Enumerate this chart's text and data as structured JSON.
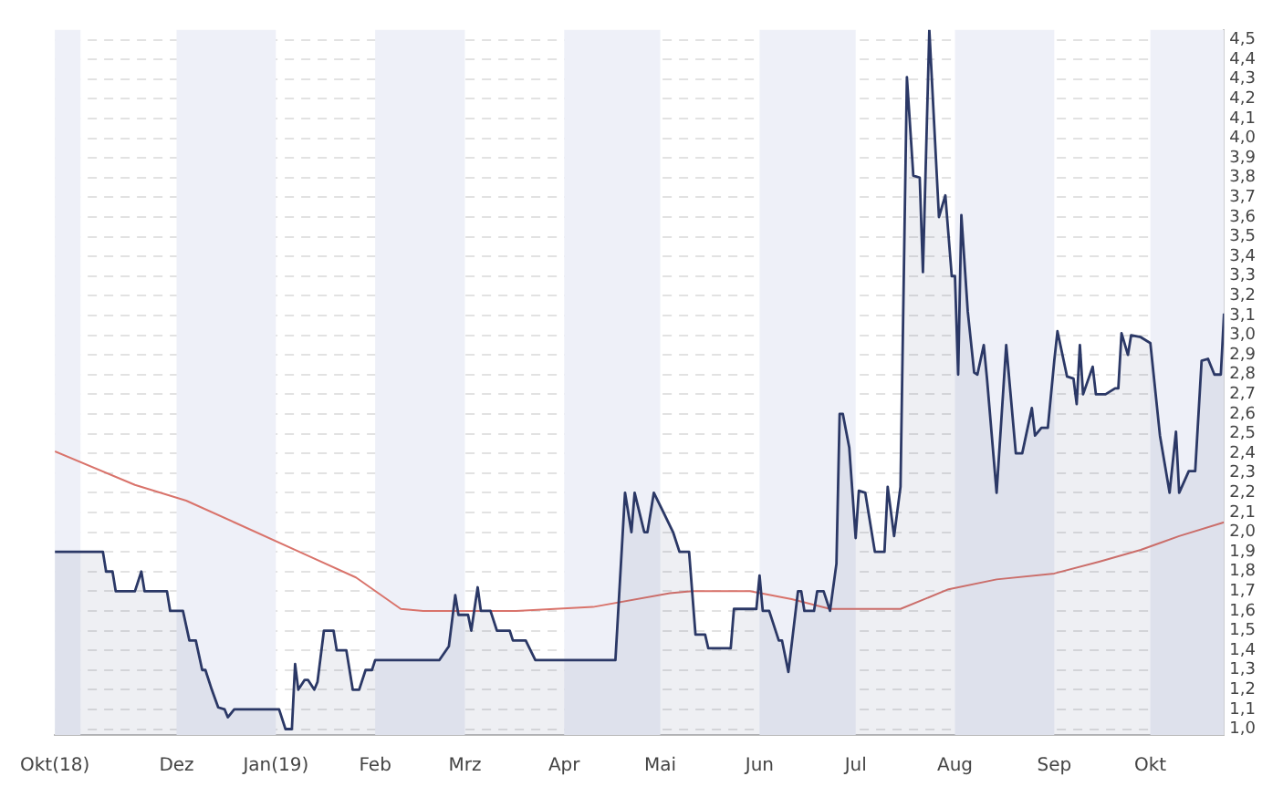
{
  "chart_data": {
    "type": "area",
    "grid": "y",
    "xlim": [
      "2018-10-24",
      "2019-10-24"
    ],
    "ylim": [
      0.97,
      4.55
    ],
    "xticks": [
      {
        "value": "2018-10-24",
        "label": "Okt(18)"
      },
      {
        "value": "2018-12-01",
        "label": "Dez"
      },
      {
        "value": "2019-01-01",
        "label": "Jan(19)"
      },
      {
        "value": "2019-02-01",
        "label": "Feb"
      },
      {
        "value": "2019-03-01",
        "label": "Mrz"
      },
      {
        "value": "2019-04-01",
        "label": "Apr"
      },
      {
        "value": "2019-05-01",
        "label": "Mai"
      },
      {
        "value": "2019-06-01",
        "label": "Jun"
      },
      {
        "value": "2019-07-01",
        "label": "Jul"
      },
      {
        "value": "2019-08-01",
        "label": "Aug"
      },
      {
        "value": "2019-09-01",
        "label": "Sep"
      },
      {
        "value": "2019-10-01",
        "label": "Okt"
      }
    ],
    "yticks": [
      {
        "value": 1.0,
        "label": "1,0"
      },
      {
        "value": 1.1,
        "label": "1,1"
      },
      {
        "value": 1.2,
        "label": "1,2"
      },
      {
        "value": 1.3,
        "label": "1,3"
      },
      {
        "value": 1.4,
        "label": "1,4"
      },
      {
        "value": 1.5,
        "label": "1,5"
      },
      {
        "value": 1.6,
        "label": "1,6"
      },
      {
        "value": 1.7,
        "label": "1,7"
      },
      {
        "value": 1.8,
        "label": "1,8"
      },
      {
        "value": 1.9,
        "label": "1,9"
      },
      {
        "value": 2.0,
        "label": "2,0"
      },
      {
        "value": 2.1,
        "label": "2,1"
      },
      {
        "value": 2.2,
        "label": "2,2"
      },
      {
        "value": 2.3,
        "label": "2,3"
      },
      {
        "value": 2.4,
        "label": "2,4"
      },
      {
        "value": 2.5,
        "label": "2,5"
      },
      {
        "value": 2.6,
        "label": "2,6"
      },
      {
        "value": 2.7,
        "label": "2,7"
      },
      {
        "value": 2.8,
        "label": "2,8"
      },
      {
        "value": 2.9,
        "label": "2,9"
      },
      {
        "value": 3.0,
        "label": "3,0"
      },
      {
        "value": 3.1,
        "label": "3,1"
      },
      {
        "value": 3.2,
        "label": "3,2"
      },
      {
        "value": 3.3,
        "label": "3,3"
      },
      {
        "value": 3.4,
        "label": "3,4"
      },
      {
        "value": 3.5,
        "label": "3,5"
      },
      {
        "value": 3.6,
        "label": "3,6"
      },
      {
        "value": 3.7,
        "label": "3,7"
      },
      {
        "value": 3.8,
        "label": "3,8"
      },
      {
        "value": 3.9,
        "label": "3,9"
      },
      {
        "value": 4.0,
        "label": "4,0"
      },
      {
        "value": 4.1,
        "label": "4,1"
      },
      {
        "value": 4.2,
        "label": "4,2"
      },
      {
        "value": 4.3,
        "label": "4,3"
      },
      {
        "value": 4.4,
        "label": "4,4"
      },
      {
        "value": 4.5,
        "label": "4,5"
      }
    ],
    "bands": [
      {
        "axis": "x",
        "from": "2018-10-24",
        "to": "2018-11-01",
        "color": "#eef0f8"
      },
      {
        "axis": "x",
        "from": "2018-12-01",
        "to": "2019-01-01",
        "color": "#eef0f8"
      },
      {
        "axis": "x",
        "from": "2019-02-01",
        "to": "2019-03-01",
        "color": "#eef0f8"
      },
      {
        "axis": "x",
        "from": "2019-04-01",
        "to": "2019-05-01",
        "color": "#eef0f8"
      },
      {
        "axis": "x",
        "from": "2019-06-01",
        "to": "2019-07-01",
        "color": "#eef0f8"
      },
      {
        "axis": "x",
        "from": "2019-08-01",
        "to": "2019-09-01",
        "color": "#eef0f8"
      },
      {
        "axis": "x",
        "from": "2019-10-01",
        "to": "2019-10-24",
        "color": "#eef0f8"
      }
    ],
    "series": [
      {
        "color": "#2b3866",
        "x": [
          "2018-10-24",
          "2018-11-08",
          "2018-11-09",
          "2018-11-11",
          "2018-11-12",
          "2018-11-18",
          "2018-11-20",
          "2018-11-21",
          "2018-11-28",
          "2018-11-29",
          "2018-12-03",
          "2018-12-05",
          "2018-12-07",
          "2018-12-09",
          "2018-12-10",
          "2018-12-12",
          "2018-12-14",
          "2018-12-16",
          "2018-12-17",
          "2018-12-19",
          "2019-01-02",
          "2019-01-04",
          "2019-01-06",
          "2019-01-07",
          "2019-01-08",
          "2019-01-10",
          "2019-01-11",
          "2019-01-13",
          "2019-01-14",
          "2019-01-16",
          "2019-01-19",
          "2019-01-20",
          "2019-01-23",
          "2019-01-25",
          "2019-01-27",
          "2019-01-29",
          "2019-01-31",
          "2019-02-01",
          "2019-02-21",
          "2019-02-24",
          "2019-02-26",
          "2019-02-27",
          "2019-03-02",
          "2019-03-03",
          "2019-03-05",
          "2019-03-06",
          "2019-03-09",
          "2019-03-11",
          "2019-03-15",
          "2019-03-16",
          "2019-03-20",
          "2019-03-23",
          "2019-04-17",
          "2019-04-20",
          "2019-04-22",
          "2019-04-23",
          "2019-04-26",
          "2019-04-27",
          "2019-04-29",
          "2019-05-02",
          "2019-05-05",
          "2019-05-07",
          "2019-05-10",
          "2019-05-12",
          "2019-05-15",
          "2019-05-16",
          "2019-05-23",
          "2019-05-24",
          "2019-05-31",
          "2019-06-01",
          "2019-06-02",
          "2019-06-04",
          "2019-06-07",
          "2019-06-08",
          "2019-06-10",
          "2019-06-13",
          "2019-06-14",
          "2019-06-15",
          "2019-06-18",
          "2019-06-19",
          "2019-06-21",
          "2019-06-23",
          "2019-06-25",
          "2019-06-26",
          "2019-06-27",
          "2019-06-29",
          "2019-07-01",
          "2019-07-02",
          "2019-07-04",
          "2019-07-05",
          "2019-07-07",
          "2019-07-10",
          "2019-07-11",
          "2019-07-13",
          "2019-07-15",
          "2019-07-17",
          "2019-07-19",
          "2019-07-21",
          "2019-07-22",
          "2019-07-24",
          "2019-07-27",
          "2019-07-29",
          "2019-07-31",
          "2019-08-01",
          "2019-08-02",
          "2019-08-03",
          "2019-08-05",
          "2019-08-07",
          "2019-08-08",
          "2019-08-10",
          "2019-08-11",
          "2019-08-14",
          "2019-08-17",
          "2019-08-20",
          "2019-08-22",
          "2019-08-25",
          "2019-08-26",
          "2019-08-28",
          "2019-08-30",
          "2019-09-01",
          "2019-09-02",
          "2019-09-05",
          "2019-09-07",
          "2019-09-08",
          "2019-09-09",
          "2019-09-10",
          "2019-09-13",
          "2019-09-14",
          "2019-09-17",
          "2019-09-20",
          "2019-09-21",
          "2019-09-22",
          "2019-09-24",
          "2019-09-25",
          "2019-09-28",
          "2019-10-01",
          "2019-10-04",
          "2019-10-07",
          "2019-10-09",
          "2019-10-10",
          "2019-10-13",
          "2019-10-15",
          "2019-10-17",
          "2019-10-19",
          "2019-10-21",
          "2019-10-23",
          "2019-10-24"
        ],
        "values": [
          1.9,
          1.9,
          1.8,
          1.8,
          1.7,
          1.7,
          1.8,
          1.7,
          1.7,
          1.6,
          1.6,
          1.45,
          1.45,
          1.3,
          1.3,
          1.2,
          1.11,
          1.1,
          1.06,
          1.1,
          1.1,
          1.0,
          1.0,
          1.33,
          1.2,
          1.25,
          1.25,
          1.2,
          1.24,
          1.5,
          1.5,
          1.4,
          1.4,
          1.2,
          1.2,
          1.3,
          1.3,
          1.35,
          1.35,
          1.42,
          1.68,
          1.58,
          1.58,
          1.5,
          1.72,
          1.6,
          1.6,
          1.5,
          1.5,
          1.45,
          1.45,
          1.35,
          1.35,
          2.2,
          2.0,
          2.2,
          2.0,
          2.0,
          2.2,
          2.1,
          2.0,
          1.9,
          1.9,
          1.48,
          1.48,
          1.41,
          1.41,
          1.61,
          1.61,
          1.78,
          1.6,
          1.6,
          1.45,
          1.45,
          1.29,
          1.7,
          1.7,
          1.6,
          1.6,
          1.7,
          1.7,
          1.6,
          1.84,
          2.6,
          2.6,
          2.43,
          1.97,
          2.21,
          2.2,
          2.1,
          1.9,
          1.9,
          2.23,
          1.98,
          2.23,
          4.31,
          3.81,
          3.8,
          3.32,
          4.55,
          3.6,
          3.71,
          3.3,
          3.3,
          2.8,
          3.61,
          3.12,
          2.81,
          2.8,
          2.95,
          2.78,
          2.2,
          2.95,
          2.4,
          2.4,
          2.63,
          2.49,
          2.53,
          2.53,
          2.87,
          3.02,
          2.79,
          2.78,
          2.65,
          2.95,
          2.7,
          2.84,
          2.7,
          2.7,
          2.73,
          2.73,
          3.01,
          2.9,
          3.0,
          2.99,
          2.96,
          2.49,
          2.2,
          2.51,
          2.2,
          2.31,
          2.31,
          2.87,
          2.88,
          2.8,
          2.8,
          3.11
        ]
      },
      {
        "type": "line",
        "color": "#d9736b",
        "x": [
          "2018-10-24",
          "2018-11-18",
          "2018-12-04",
          "2018-12-19",
          "2019-01-11",
          "2019-01-26",
          "2019-02-09",
          "2019-02-16",
          "2019-03-17",
          "2019-04-10",
          "2019-05-04",
          "2019-05-11",
          "2019-05-29",
          "2019-06-11",
          "2019-06-23",
          "2019-07-15",
          "2019-07-30",
          "2019-08-14",
          "2019-09-01",
          "2019-09-15",
          "2019-09-28",
          "2019-10-10",
          "2019-10-24"
        ],
        "values": [
          2.41,
          2.24,
          2.16,
          2.05,
          1.88,
          1.77,
          1.61,
          1.6,
          1.6,
          1.62,
          1.69,
          1.7,
          1.7,
          1.66,
          1.61,
          1.61,
          1.71,
          1.76,
          1.79,
          1.85,
          1.91,
          1.98,
          2.05
        ]
      }
    ]
  }
}
